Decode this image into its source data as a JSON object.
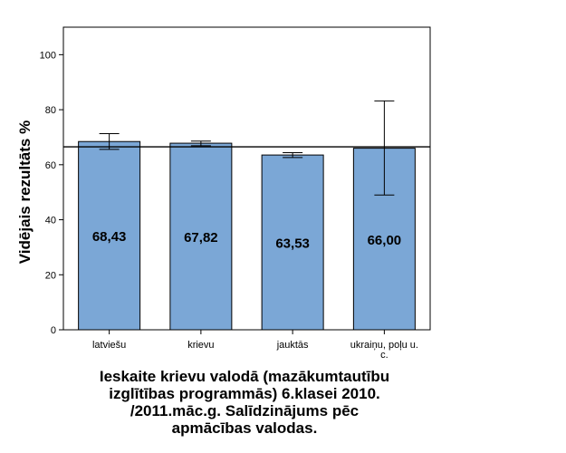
{
  "chart_data": {
    "type": "bar",
    "categories": [
      "latviešu",
      "krievu",
      "jauktās",
      "ukraiņu, poļu u. c."
    ],
    "category_label_lines": [
      [
        "latviešu"
      ],
      [
        "krievu"
      ],
      [
        "jauktās"
      ],
      [
        "ukraiņu, poļu u.",
        "c."
      ]
    ],
    "values": [
      68.43,
      67.82,
      63.53,
      66.0
    ],
    "value_labels": [
      "68,43",
      "67,82",
      "63,53",
      "66,00"
    ],
    "error_bars": [
      [
        65.6,
        71.3
      ],
      [
        66.9,
        68.6
      ],
      [
        62.6,
        64.4
      ],
      [
        49.0,
        83.2
      ]
    ],
    "reference_line": 66.5,
    "ylabel": "Vidējais rezultāts %",
    "xlabel": "",
    "ylim": [
      0,
      110
    ],
    "yticks": [
      0,
      20,
      40,
      60,
      80,
      100
    ],
    "grid": false,
    "bar_color": "#7ba7d6"
  },
  "caption_lines": [
    "Ieskaite krievu valodā (mazākumtautību",
    "izglītības programmās) 6.klasei 2010.",
    "/2011.māc.g. Salīdzinājums pēc",
    "apmācības valodas."
  ]
}
